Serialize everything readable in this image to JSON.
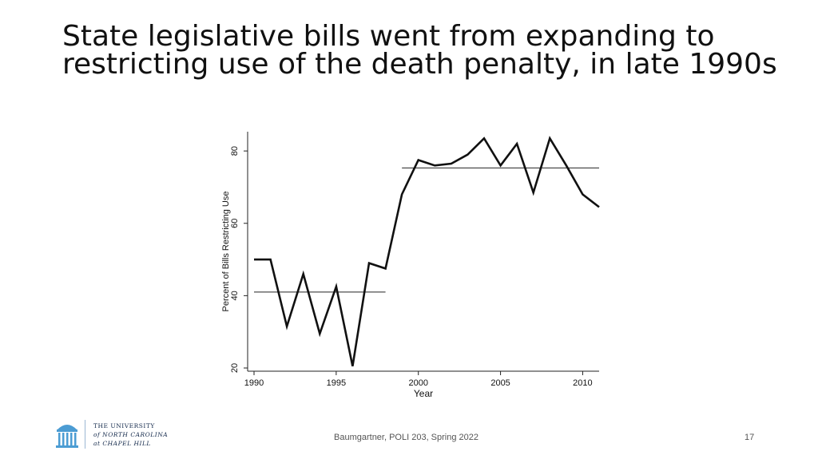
{
  "slide": {
    "title": "State legislative bills went from expanding to restricting use of the death penalty, in late 1990s",
    "footer": "Baumgartner, POLI 203, Spring 2022",
    "page_number": "17"
  },
  "logo": {
    "line1": "THE UNIVERSITY",
    "line2": "of NORTH CAROLINA",
    "line3": "at CHAPEL HILL",
    "color": "#13294b",
    "accent": "#4b9cd3"
  },
  "chart_data": {
    "type": "line",
    "title": "",
    "xlabel": "Year",
    "ylabel": "Percent of Bills Restricting Use",
    "xlim": [
      1990,
      2011
    ],
    "ylim": [
      20,
      84
    ],
    "xticks": [
      1990,
      1995,
      2000,
      2005,
      2010
    ],
    "yticks": [
      20,
      40,
      60,
      80
    ],
    "grid": false,
    "series": [
      {
        "x": [
          1990,
          1991,
          1992,
          1993,
          1994,
          1995,
          1996,
          1997,
          1998,
          1999,
          2000,
          2001,
          2002,
          2003,
          2004,
          2005,
          2006,
          2007,
          2008,
          2009,
          2010,
          2011
        ],
        "values": [
          50,
          50,
          31.5,
          46,
          29.5,
          42.5,
          20.5,
          49,
          47.5,
          68,
          77.5,
          76,
          76.5,
          79,
          83.5,
          76,
          82,
          68.5,
          83.5,
          76,
          68,
          64.5
        ]
      }
    ],
    "reference_lines": [
      {
        "x_start": 1990,
        "x_end": 1998,
        "y": 41
      },
      {
        "x_start": 1999,
        "x_end": 2011,
        "y": 75.3
      }
    ]
  }
}
